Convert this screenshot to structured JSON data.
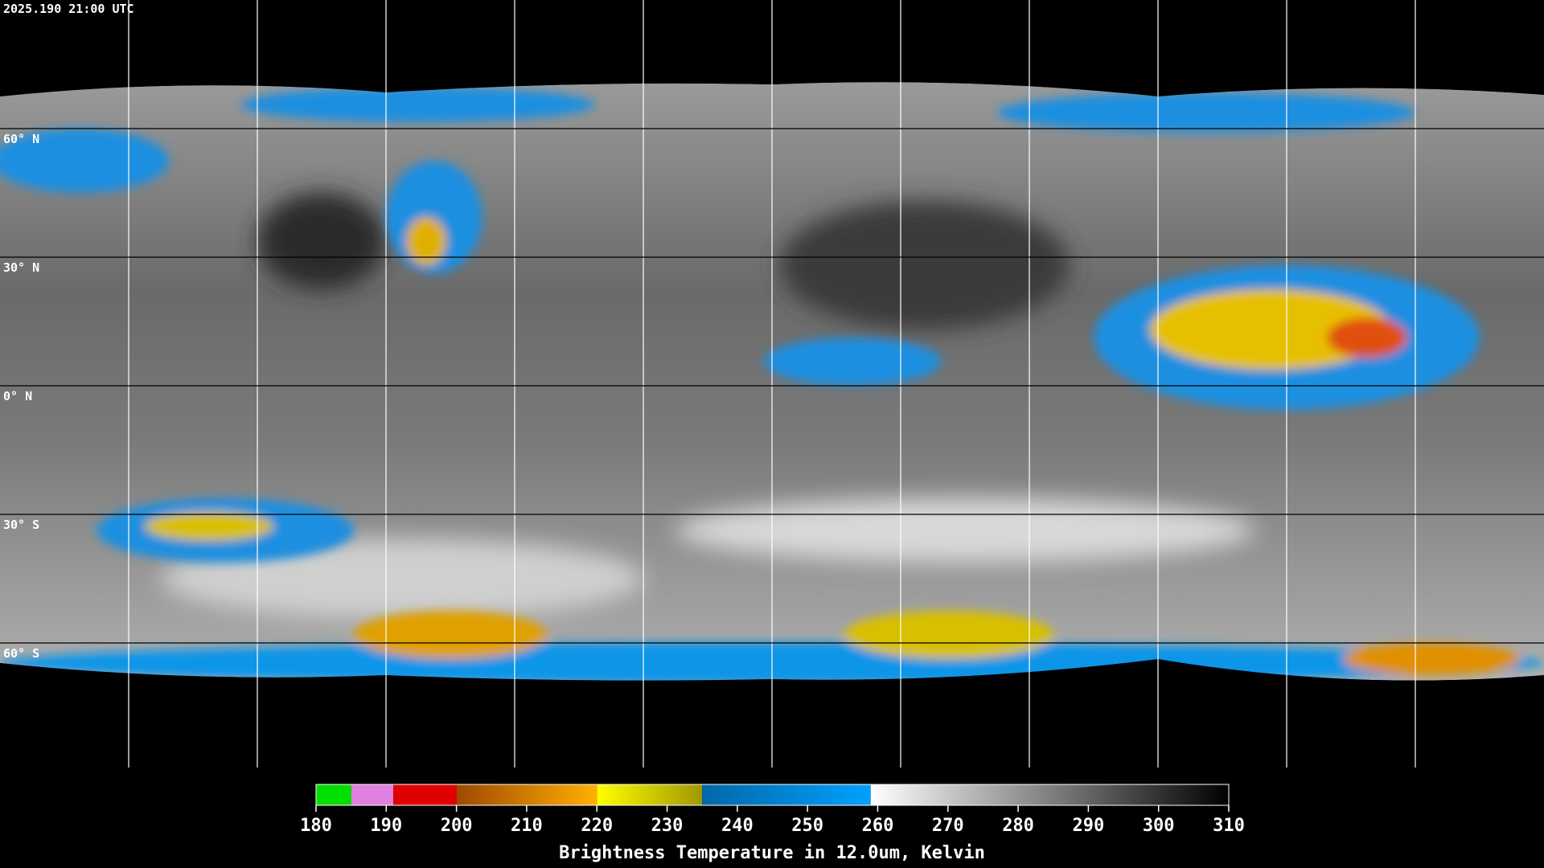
{
  "header": {
    "timestamp": "2025.190 21:00 UTC"
  },
  "map": {
    "lat_grid": [
      {
        "value": 60,
        "label": "60° N"
      },
      {
        "value": 30,
        "label": "30° N"
      },
      {
        "value": 0,
        "label": "0° N"
      },
      {
        "value": -30,
        "label": "30° S"
      },
      {
        "value": -60,
        "label": "60° S"
      }
    ]
  },
  "colorbar": {
    "title": "Brightness Temperature in 12.0um, Kelvin",
    "range": [
      180,
      310
    ],
    "ticks": [
      180,
      190,
      200,
      210,
      220,
      230,
      240,
      250,
      260,
      270,
      280,
      290,
      300,
      310
    ],
    "segments": [
      {
        "from": 180,
        "to": 185,
        "colors": [
          "#00e000",
          "#00e000"
        ]
      },
      {
        "from": 185,
        "to": 191,
        "colors": [
          "#e080e0",
          "#e080e0"
        ]
      },
      {
        "from": 191,
        "to": 200,
        "colors": [
          "#e00000",
          "#e00000"
        ]
      },
      {
        "from": 200,
        "to": 220,
        "colors": [
          "#a04800",
          "#ffb000"
        ]
      },
      {
        "from": 220,
        "to": 235,
        "colors": [
          "#ffff00",
          "#a09800"
        ]
      },
      {
        "from": 235,
        "to": 259,
        "colors": [
          "#0068a8",
          "#00a0ff"
        ]
      },
      {
        "from": 259,
        "to": 310,
        "colors": [
          "#ffffff",
          "#000000"
        ]
      }
    ]
  }
}
